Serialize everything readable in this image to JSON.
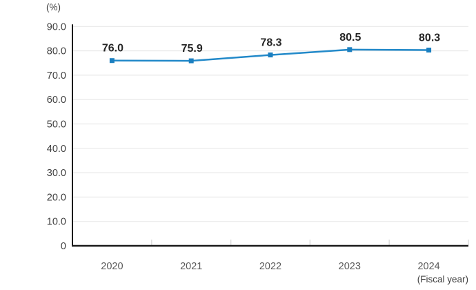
{
  "chart_data": {
    "type": "line",
    "title": "",
    "unit_label": "(%)",
    "x_axis_label": "(Fiscal year)",
    "categories": [
      "2020",
      "2021",
      "2022",
      "2023",
      "2024"
    ],
    "series": [
      {
        "name": "percentage",
        "values": [
          76.0,
          75.9,
          78.3,
          80.5,
          80.3
        ]
      }
    ],
    "data_labels": [
      "76.0",
      "75.9",
      "78.3",
      "80.5",
      "80.3"
    ],
    "y_ticks": [
      "90.0",
      "80.0",
      "70.0",
      "60.0",
      "50.0",
      "40.0",
      "30.0",
      "20.0",
      "10.0",
      "0"
    ],
    "y_tick_values": [
      90,
      80,
      70,
      60,
      50,
      40,
      30,
      20,
      10,
      0
    ],
    "ylim": [
      0,
      90
    ],
    "grid": true,
    "legend": "none",
    "marker_shape": "square",
    "colors": {
      "line": "#2289c9",
      "marker": "#1b7fc0",
      "axis": "#1a1a1a",
      "grid": "#e9e9e9",
      "tick": "#dcdcdc",
      "y_label": "#404040",
      "x_label": "#595959",
      "data_label": "#262626"
    }
  }
}
